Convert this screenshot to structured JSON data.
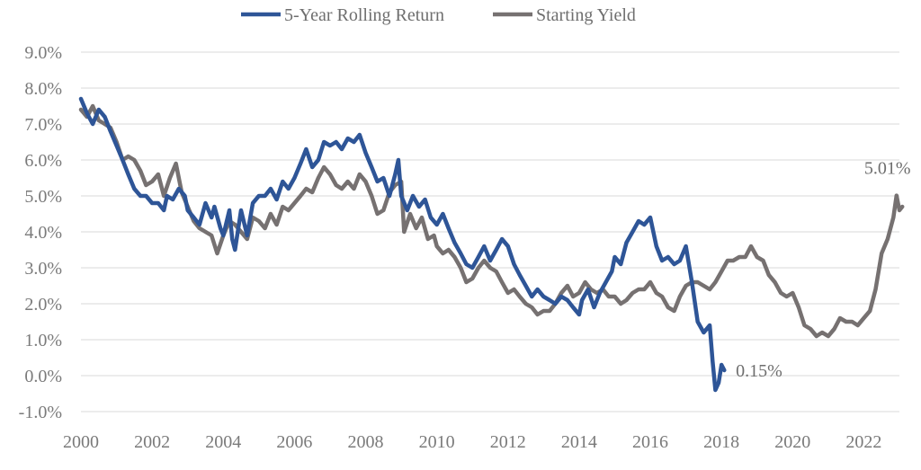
{
  "chart_data": {
    "type": "line",
    "title": "",
    "xlabel": "",
    "ylabel": "",
    "xlim": [
      2000,
      2023
    ],
    "ylim": [
      -1.0,
      9.0
    ],
    "grid": "horizontal",
    "legend_position": "top-center",
    "x_ticks": [
      "2000",
      "2002",
      "2004",
      "2006",
      "2008",
      "2010",
      "2012",
      "2014",
      "2016",
      "2018",
      "2020",
      "2022"
    ],
    "y_ticks": [
      "-1.0%",
      "0.0%",
      "1.0%",
      "2.0%",
      "3.0%",
      "4.0%",
      "5.0%",
      "6.0%",
      "7.0%",
      "8.0%",
      "9.0%"
    ],
    "series": [
      {
        "name": "5-Year Rolling Return",
        "color": "#2e5597",
        "points": [
          [
            2000.0,
            7.7
          ],
          [
            2000.17,
            7.3
          ],
          [
            2000.33,
            7.0
          ],
          [
            2000.5,
            7.4
          ],
          [
            2000.67,
            7.2
          ],
          [
            2000.83,
            6.8
          ],
          [
            2001.0,
            6.4
          ],
          [
            2001.17,
            6.0
          ],
          [
            2001.33,
            5.6
          ],
          [
            2001.5,
            5.2
          ],
          [
            2001.67,
            5.0
          ],
          [
            2001.83,
            5.0
          ],
          [
            2002.0,
            4.8
          ],
          [
            2002.17,
            4.8
          ],
          [
            2002.33,
            4.6
          ],
          [
            2002.42,
            5.0
          ],
          [
            2002.58,
            4.9
          ],
          [
            2002.75,
            5.2
          ],
          [
            2002.92,
            5.0
          ],
          [
            2003.0,
            4.6
          ],
          [
            2003.17,
            4.4
          ],
          [
            2003.33,
            4.2
          ],
          [
            2003.5,
            4.8
          ],
          [
            2003.67,
            4.4
          ],
          [
            2003.75,
            4.7
          ],
          [
            2003.92,
            4.1
          ],
          [
            2004.0,
            3.9
          ],
          [
            2004.17,
            4.6
          ],
          [
            2004.25,
            3.8
          ],
          [
            2004.33,
            3.5
          ],
          [
            2004.5,
            4.6
          ],
          [
            2004.67,
            3.9
          ],
          [
            2004.83,
            4.8
          ],
          [
            2005.0,
            5.0
          ],
          [
            2005.17,
            5.0
          ],
          [
            2005.33,
            5.2
          ],
          [
            2005.5,
            4.9
          ],
          [
            2005.67,
            5.4
          ],
          [
            2005.83,
            5.2
          ],
          [
            2006.0,
            5.5
          ],
          [
            2006.17,
            5.9
          ],
          [
            2006.33,
            6.3
          ],
          [
            2006.5,
            5.8
          ],
          [
            2006.67,
            6.0
          ],
          [
            2006.83,
            6.5
          ],
          [
            2007.0,
            6.4
          ],
          [
            2007.17,
            6.5
          ],
          [
            2007.33,
            6.3
          ],
          [
            2007.5,
            6.6
          ],
          [
            2007.67,
            6.5
          ],
          [
            2007.83,
            6.7
          ],
          [
            2008.0,
            6.2
          ],
          [
            2008.17,
            5.8
          ],
          [
            2008.33,
            5.4
          ],
          [
            2008.5,
            5.5
          ],
          [
            2008.67,
            5.0
          ],
          [
            2008.83,
            5.6
          ],
          [
            2008.92,
            6.0
          ],
          [
            2009.0,
            5.0
          ],
          [
            2009.17,
            4.6
          ],
          [
            2009.33,
            5.0
          ],
          [
            2009.5,
            4.7
          ],
          [
            2009.67,
            4.9
          ],
          [
            2009.83,
            4.4
          ],
          [
            2010.0,
            4.2
          ],
          [
            2010.17,
            4.5
          ],
          [
            2010.33,
            4.1
          ],
          [
            2010.5,
            3.7
          ],
          [
            2010.67,
            3.4
          ],
          [
            2010.83,
            3.1
          ],
          [
            2011.0,
            3.0
          ],
          [
            2011.17,
            3.3
          ],
          [
            2011.33,
            3.6
          ],
          [
            2011.5,
            3.2
          ],
          [
            2011.67,
            3.5
          ],
          [
            2011.83,
            3.8
          ],
          [
            2012.0,
            3.6
          ],
          [
            2012.17,
            3.1
          ],
          [
            2012.33,
            2.8
          ],
          [
            2012.5,
            2.5
          ],
          [
            2012.67,
            2.2
          ],
          [
            2012.83,
            2.4
          ],
          [
            2013.0,
            2.2
          ],
          [
            2013.17,
            2.1
          ],
          [
            2013.33,
            2.0
          ],
          [
            2013.5,
            2.2
          ],
          [
            2013.67,
            2.1
          ],
          [
            2013.83,
            1.9
          ],
          [
            2014.0,
            1.7
          ],
          [
            2014.08,
            2.1
          ],
          [
            2014.25,
            2.4
          ],
          [
            2014.42,
            1.9
          ],
          [
            2014.58,
            2.3
          ],
          [
            2014.75,
            2.6
          ],
          [
            2014.92,
            2.9
          ],
          [
            2015.0,
            3.3
          ],
          [
            2015.17,
            3.1
          ],
          [
            2015.33,
            3.7
          ],
          [
            2015.5,
            4.0
          ],
          [
            2015.67,
            4.3
          ],
          [
            2015.83,
            4.2
          ],
          [
            2016.0,
            4.4
          ],
          [
            2016.17,
            3.6
          ],
          [
            2016.33,
            3.2
          ],
          [
            2016.5,
            3.3
          ],
          [
            2016.67,
            3.1
          ],
          [
            2016.83,
            3.2
          ],
          [
            2017.0,
            3.6
          ],
          [
            2017.17,
            2.6
          ],
          [
            2017.33,
            1.5
          ],
          [
            2017.5,
            1.2
          ],
          [
            2017.67,
            1.4
          ],
          [
            2017.75,
            0.4
          ],
          [
            2017.83,
            -0.4
          ],
          [
            2017.92,
            -0.2
          ],
          [
            2018.0,
            0.3
          ],
          [
            2018.08,
            0.15
          ]
        ]
      },
      {
        "name": "Starting Yield",
        "color": "#767171",
        "points": [
          [
            2000.0,
            7.4
          ],
          [
            2000.17,
            7.2
          ],
          [
            2000.33,
            7.5
          ],
          [
            2000.5,
            7.1
          ],
          [
            2000.67,
            7.0
          ],
          [
            2000.83,
            6.9
          ],
          [
            2001.0,
            6.5
          ],
          [
            2001.17,
            6.0
          ],
          [
            2001.33,
            6.1
          ],
          [
            2001.5,
            6.0
          ],
          [
            2001.67,
            5.7
          ],
          [
            2001.83,
            5.3
          ],
          [
            2002.0,
            5.4
          ],
          [
            2002.17,
            5.6
          ],
          [
            2002.33,
            5.0
          ],
          [
            2002.5,
            5.5
          ],
          [
            2002.67,
            5.9
          ],
          [
            2002.83,
            5.1
          ],
          [
            2003.0,
            4.7
          ],
          [
            2003.17,
            4.3
          ],
          [
            2003.33,
            4.1
          ],
          [
            2003.5,
            4.0
          ],
          [
            2003.67,
            3.9
          ],
          [
            2003.83,
            3.4
          ],
          [
            2004.0,
            3.9
          ],
          [
            2004.17,
            4.3
          ],
          [
            2004.33,
            4.2
          ],
          [
            2004.5,
            4.0
          ],
          [
            2004.67,
            3.8
          ],
          [
            2004.83,
            4.4
          ],
          [
            2005.0,
            4.3
          ],
          [
            2005.17,
            4.1
          ],
          [
            2005.33,
            4.5
          ],
          [
            2005.5,
            4.2
          ],
          [
            2005.67,
            4.7
          ],
          [
            2005.83,
            4.6
          ],
          [
            2006.0,
            4.8
          ],
          [
            2006.17,
            5.0
          ],
          [
            2006.33,
            5.2
          ],
          [
            2006.5,
            5.1
          ],
          [
            2006.67,
            5.5
          ],
          [
            2006.83,
            5.8
          ],
          [
            2007.0,
            5.6
          ],
          [
            2007.17,
            5.3
          ],
          [
            2007.33,
            5.2
          ],
          [
            2007.5,
            5.4
          ],
          [
            2007.67,
            5.2
          ],
          [
            2007.83,
            5.6
          ],
          [
            2008.0,
            5.4
          ],
          [
            2008.17,
            5.0
          ],
          [
            2008.33,
            4.5
          ],
          [
            2008.5,
            4.6
          ],
          [
            2008.67,
            5.1
          ],
          [
            2008.83,
            5.3
          ],
          [
            2009.0,
            5.4
          ],
          [
            2009.08,
            4.0
          ],
          [
            2009.25,
            4.5
          ],
          [
            2009.42,
            4.1
          ],
          [
            2009.58,
            4.4
          ],
          [
            2009.75,
            3.8
          ],
          [
            2009.92,
            3.9
          ],
          [
            2010.0,
            3.6
          ],
          [
            2010.17,
            3.4
          ],
          [
            2010.33,
            3.5
          ],
          [
            2010.5,
            3.3
          ],
          [
            2010.67,
            3.0
          ],
          [
            2010.83,
            2.6
          ],
          [
            2011.0,
            2.7
          ],
          [
            2011.17,
            3.0
          ],
          [
            2011.33,
            3.2
          ],
          [
            2011.5,
            3.0
          ],
          [
            2011.67,
            2.9
          ],
          [
            2011.83,
            2.6
          ],
          [
            2012.0,
            2.3
          ],
          [
            2012.17,
            2.4
          ],
          [
            2012.33,
            2.2
          ],
          [
            2012.5,
            2.0
          ],
          [
            2012.67,
            1.9
          ],
          [
            2012.83,
            1.7
          ],
          [
            2013.0,
            1.8
          ],
          [
            2013.17,
            1.8
          ],
          [
            2013.33,
            2.0
          ],
          [
            2013.5,
            2.3
          ],
          [
            2013.67,
            2.5
          ],
          [
            2013.83,
            2.2
          ],
          [
            2014.0,
            2.3
          ],
          [
            2014.17,
            2.6
          ],
          [
            2014.33,
            2.4
          ],
          [
            2014.5,
            2.3
          ],
          [
            2014.67,
            2.4
          ],
          [
            2014.83,
            2.2
          ],
          [
            2015.0,
            2.2
          ],
          [
            2015.17,
            2.0
          ],
          [
            2015.33,
            2.1
          ],
          [
            2015.5,
            2.3
          ],
          [
            2015.67,
            2.4
          ],
          [
            2015.83,
            2.4
          ],
          [
            2016.0,
            2.6
          ],
          [
            2016.17,
            2.3
          ],
          [
            2016.33,
            2.2
          ],
          [
            2016.5,
            1.9
          ],
          [
            2016.67,
            1.8
          ],
          [
            2016.83,
            2.2
          ],
          [
            2017.0,
            2.5
          ],
          [
            2017.17,
            2.6
          ],
          [
            2017.33,
            2.6
          ],
          [
            2017.5,
            2.5
          ],
          [
            2017.67,
            2.4
          ],
          [
            2017.83,
            2.6
          ],
          [
            2018.0,
            2.9
          ],
          [
            2018.17,
            3.2
          ],
          [
            2018.33,
            3.2
          ],
          [
            2018.5,
            3.3
          ],
          [
            2018.67,
            3.3
          ],
          [
            2018.83,
            3.6
          ],
          [
            2019.0,
            3.3
          ],
          [
            2019.17,
            3.2
          ],
          [
            2019.33,
            2.8
          ],
          [
            2019.5,
            2.6
          ],
          [
            2019.67,
            2.3
          ],
          [
            2019.83,
            2.2
          ],
          [
            2020.0,
            2.3
          ],
          [
            2020.17,
            1.9
          ],
          [
            2020.33,
            1.4
          ],
          [
            2020.5,
            1.3
          ],
          [
            2020.67,
            1.1
          ],
          [
            2020.83,
            1.2
          ],
          [
            2021.0,
            1.1
          ],
          [
            2021.17,
            1.3
          ],
          [
            2021.33,
            1.6
          ],
          [
            2021.5,
            1.5
          ],
          [
            2021.67,
            1.5
          ],
          [
            2021.83,
            1.4
          ],
          [
            2022.0,
            1.6
          ],
          [
            2022.17,
            1.8
          ],
          [
            2022.33,
            2.4
          ],
          [
            2022.5,
            3.4
          ],
          [
            2022.67,
            3.8
          ],
          [
            2022.83,
            4.4
          ],
          [
            2022.92,
            5.01
          ],
          [
            2023.0,
            4.6
          ],
          [
            2023.08,
            4.7
          ]
        ]
      }
    ],
    "annotations": [
      {
        "text": "0.15%",
        "x": 2018.1,
        "y": 0.15,
        "series": "5-Year Rolling Return"
      },
      {
        "text": "5.01%",
        "x": 2022.92,
        "y": 5.01,
        "series": "Starting Yield"
      }
    ]
  }
}
